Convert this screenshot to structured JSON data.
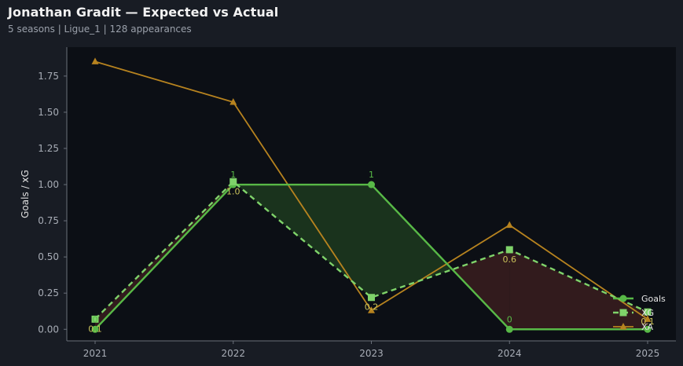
{
  "header": {
    "title": "Jonathan Gradit — Expected vs Actual",
    "subtitle": "5 seasons | Ligue_1 | 128 appearances"
  },
  "colors": {
    "background": "#181c24",
    "plot_background": "#0c0f15",
    "goals": "#58b947",
    "xg": "#7fd36a",
    "xa": "#b7831f",
    "overperform_fill": "#1d3a1f",
    "underperform_fill": "#3a1d1f"
  },
  "chart_data": {
    "type": "line",
    "x": [
      "2021",
      "2022",
      "2023",
      "2024",
      "2025"
    ],
    "series": [
      {
        "name": "Goals",
        "values": [
          0,
          1,
          1,
          0,
          0
        ],
        "labels": [
          "0",
          "1",
          "1",
          "0",
          ""
        ]
      },
      {
        "name": "XG",
        "values": [
          0.07,
          1.02,
          0.22,
          0.55,
          0.12
        ],
        "labels": [
          "0.1",
          "1.0",
          "0.2",
          "0.6",
          "0.1"
        ]
      },
      {
        "name": "XA",
        "values": [
          1.85,
          1.57,
          0.13,
          0.72,
          0.07
        ]
      }
    ],
    "ylabel": "Goals / xG",
    "xlabel": "",
    "ylim": [
      -0.08,
      1.95
    ],
    "yticks": [
      "0.00",
      "0.25",
      "0.50",
      "0.75",
      "1.00",
      "1.25",
      "1.50",
      "1.75"
    ],
    "grid": false,
    "legend": "bottom-right"
  }
}
